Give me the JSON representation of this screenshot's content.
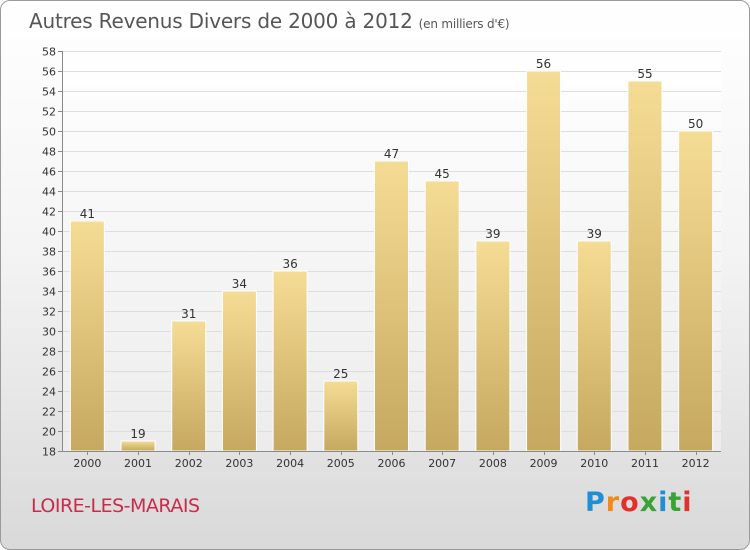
{
  "header": {
    "title": "Autres Revenus Divers de 2000 à 2012",
    "subtitle": "(en milliers d'€)"
  },
  "footer": {
    "town": "LOIRE-LES-MARAIS",
    "logo_letters": [
      "P",
      "r",
      "o",
      "x",
      "i",
      "t",
      "i"
    ],
    "logo_colors": [
      "#1e8fd6",
      "#f08a1c",
      "#e0312a",
      "#3aa335",
      "#1e8fd6",
      "#3aa335",
      "#e0312a"
    ]
  },
  "chart_data": {
    "type": "bar",
    "categories": [
      "2000",
      "2001",
      "2002",
      "2003",
      "2004",
      "2005",
      "2006",
      "2007",
      "2008",
      "2009",
      "2010",
      "2011",
      "2012"
    ],
    "values": [
      41,
      19,
      31,
      34,
      36,
      25,
      47,
      45,
      39,
      56,
      39,
      55,
      50
    ],
    "ylim": [
      18,
      58
    ],
    "yticks": [
      18,
      20,
      22,
      24,
      26,
      28,
      30,
      32,
      34,
      36,
      38,
      40,
      42,
      44,
      46,
      48,
      50,
      52,
      54,
      56,
      58
    ],
    "grid": true,
    "bar_color_top": "#f5dc94",
    "bar_color_bottom": "#c6a860"
  }
}
